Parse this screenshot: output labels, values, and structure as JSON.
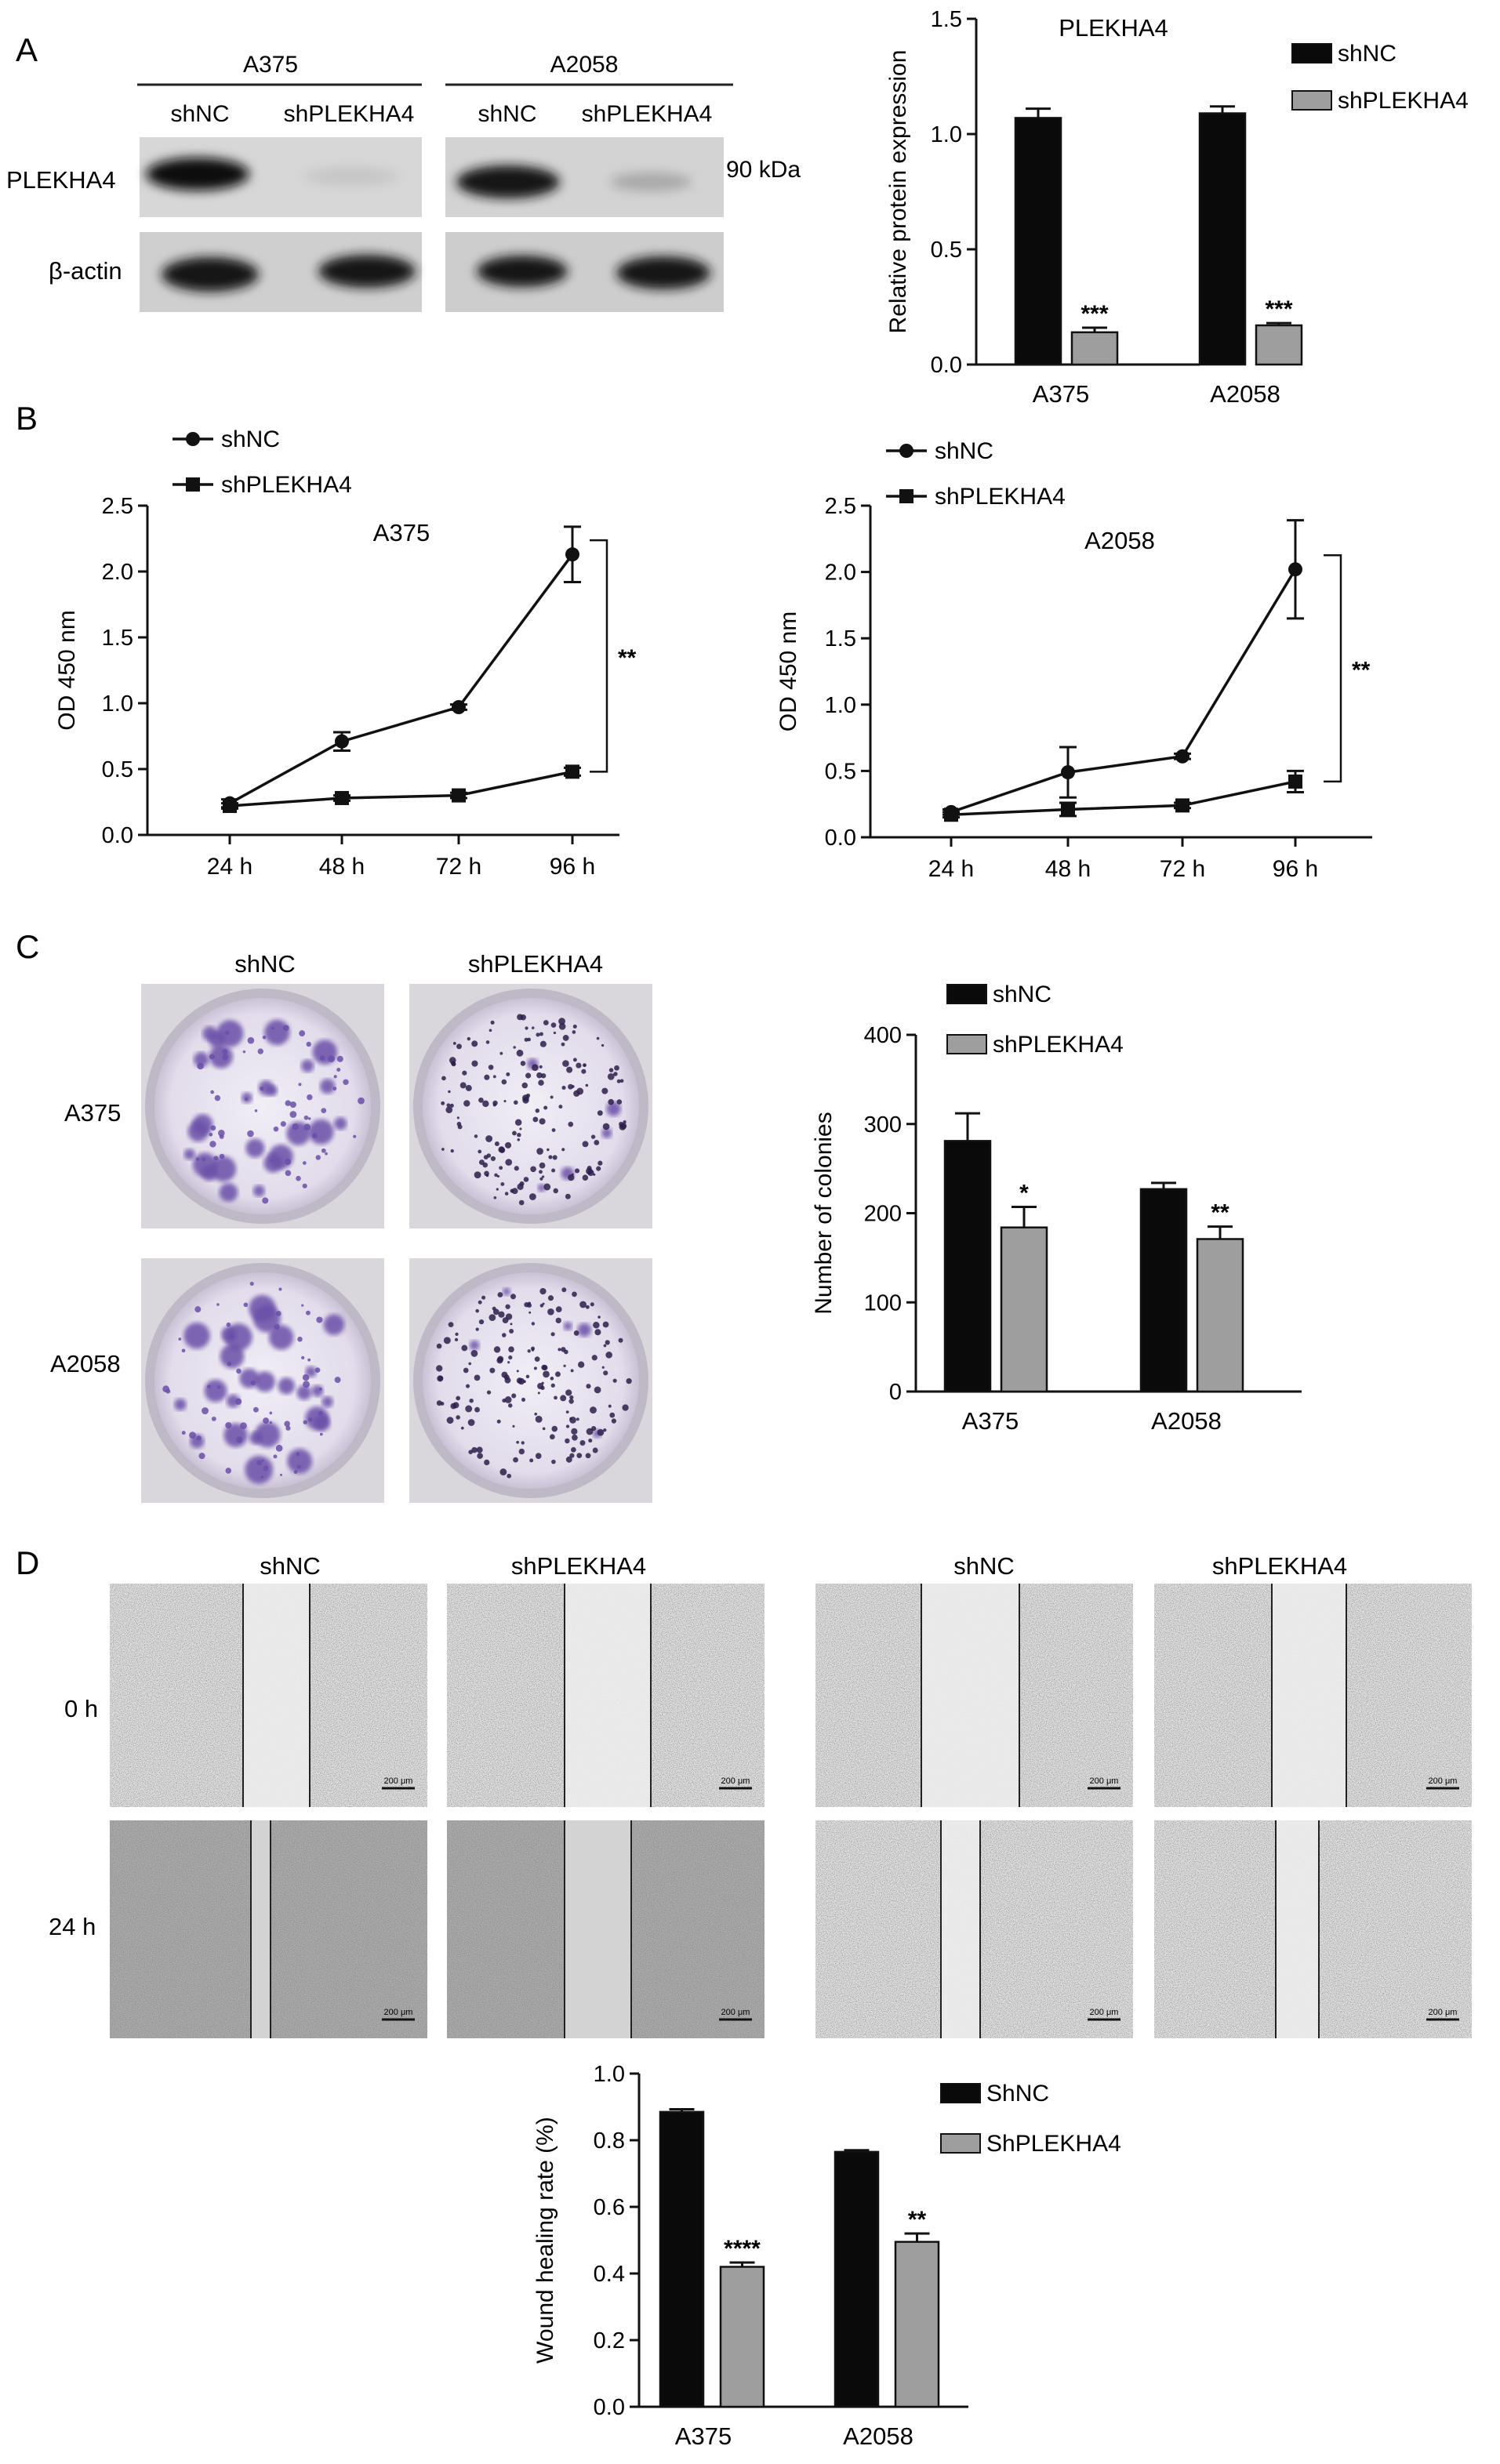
{
  "panels": {
    "a": "A",
    "b": "B",
    "c": "C",
    "d": "D"
  },
  "panel_a": {
    "blot": {
      "cell_lines": [
        "A375",
        "A2058"
      ],
      "lanes": [
        "shNC",
        "shPLEKHA4",
        "shNC",
        "shPLEKHA4"
      ],
      "row_labels": [
        "PLEKHA4",
        "β-actin"
      ],
      "marker": "90 kDa"
    }
  },
  "panel_c": {
    "col_labels": [
      "shNC",
      "shPLEKHA4"
    ],
    "row_labels": [
      "A375",
      "A2058"
    ]
  },
  "panel_d": {
    "col_labels": [
      "shNC",
      "shPLEKHA4",
      "shNC",
      "shPLEKHA4"
    ],
    "row_labels": [
      "0 h",
      "24 h"
    ],
    "scale_bar": "200 μm"
  },
  "colors": {
    "black_bar": "#0a0a0a",
    "grey_bar": "#9e9e9e",
    "colony": "#6a4fa8",
    "plate_bg": "#e9e6f0",
    "wound_bg": "#e4e4e4"
  },
  "chart_data": [
    {
      "id": "a_bar",
      "type": "bar",
      "title": "PLEKHA4",
      "ylabel": "Relative protein expression",
      "categories": [
        "A375",
        "A2058"
      ],
      "ylim": [
        0,
        1.5
      ],
      "yticks": [
        "0.0",
        "0.5",
        "1.0",
        "1.5"
      ],
      "legend": "top-right",
      "series": [
        {
          "name": "shNC",
          "values": [
            1.07,
            1.09
          ],
          "errors": [
            0.04,
            0.03
          ],
          "color": "#0a0a0a"
        },
        {
          "name": "shPLEKHA4",
          "values": [
            0.14,
            0.17
          ],
          "errors": [
            0.02,
            0.01
          ],
          "color": "#9e9e9e"
        }
      ],
      "annotations": [
        "***",
        "***"
      ]
    },
    {
      "id": "b_line_a375",
      "type": "line",
      "title": "A375",
      "ylabel": "OD 450 nm",
      "categories": [
        "24 h",
        "48 h",
        "72 h",
        "96 h"
      ],
      "ylim": [
        0,
        2.5
      ],
      "yticks": [
        "0.0",
        "0.5",
        "1.0",
        "1.5",
        "2.0",
        "2.5"
      ],
      "legend": "top-left",
      "series": [
        {
          "name": "shNC",
          "marker": "circle",
          "values": [
            0.24,
            0.71,
            0.97,
            2.13
          ],
          "errors": [
            0.03,
            0.07,
            0.02,
            0.21
          ]
        },
        {
          "name": "shPLEKHA4",
          "marker": "square",
          "values": [
            0.22,
            0.28,
            0.3,
            0.48
          ],
          "errors": [
            0.02,
            0.02,
            0.02,
            0.03
          ]
        }
      ],
      "annotation": "**"
    },
    {
      "id": "b_line_a2058",
      "type": "line",
      "title": "A2058",
      "ylabel": "OD 450 nm",
      "categories": [
        "24 h",
        "48 h",
        "72 h",
        "96 h"
      ],
      "ylim": [
        0,
        2.5
      ],
      "yticks": [
        "0.0",
        "0.5",
        "1.0",
        "1.5",
        "2.0",
        "2.5"
      ],
      "legend": "top-left",
      "series": [
        {
          "name": "shNC",
          "marker": "circle",
          "values": [
            0.19,
            0.49,
            0.61,
            2.02
          ],
          "errors": [
            0.02,
            0.19,
            0.02,
            0.37
          ]
        },
        {
          "name": "shPLEKHA4",
          "marker": "square",
          "values": [
            0.17,
            0.21,
            0.24,
            0.42
          ],
          "errors": [
            0.02,
            0.05,
            0.02,
            0.08
          ]
        }
      ],
      "annotation": "**"
    },
    {
      "id": "c_bar",
      "type": "bar",
      "title": "",
      "ylabel": "Number of colonies",
      "categories": [
        "A375",
        "A2058"
      ],
      "ylim": [
        0,
        400
      ],
      "yticks": [
        "0",
        "100",
        "200",
        "300",
        "400"
      ],
      "legend": "top",
      "series": [
        {
          "name": "shNC",
          "values": [
            281,
            227
          ],
          "errors": [
            31,
            7
          ],
          "color": "#0a0a0a"
        },
        {
          "name": "shPLEKHA4",
          "values": [
            184,
            171
          ],
          "errors": [
            23,
            14
          ],
          "color": "#9e9e9e"
        }
      ],
      "annotations": [
        "*",
        "**"
      ]
    },
    {
      "id": "d_bar",
      "type": "bar",
      "title": "",
      "ylabel": "Wound healing rate (%)",
      "categories": [
        "A375",
        "A2058"
      ],
      "ylim": [
        0,
        1.0
      ],
      "yticks": [
        "0.0",
        "0.2",
        "0.4",
        "0.6",
        "0.8",
        "1.0"
      ],
      "legend": "top-right",
      "series": [
        {
          "name": "ShNC",
          "values": [
            0.885,
            0.765
          ],
          "errors": [
            0.008,
            0.005
          ],
          "color": "#0a0a0a"
        },
        {
          "name": "ShPLEKHA4",
          "values": [
            0.42,
            0.495
          ],
          "errors": [
            0.013,
            0.025
          ],
          "color": "#9e9e9e"
        }
      ],
      "annotations": [
        "****",
        "**"
      ]
    }
  ]
}
